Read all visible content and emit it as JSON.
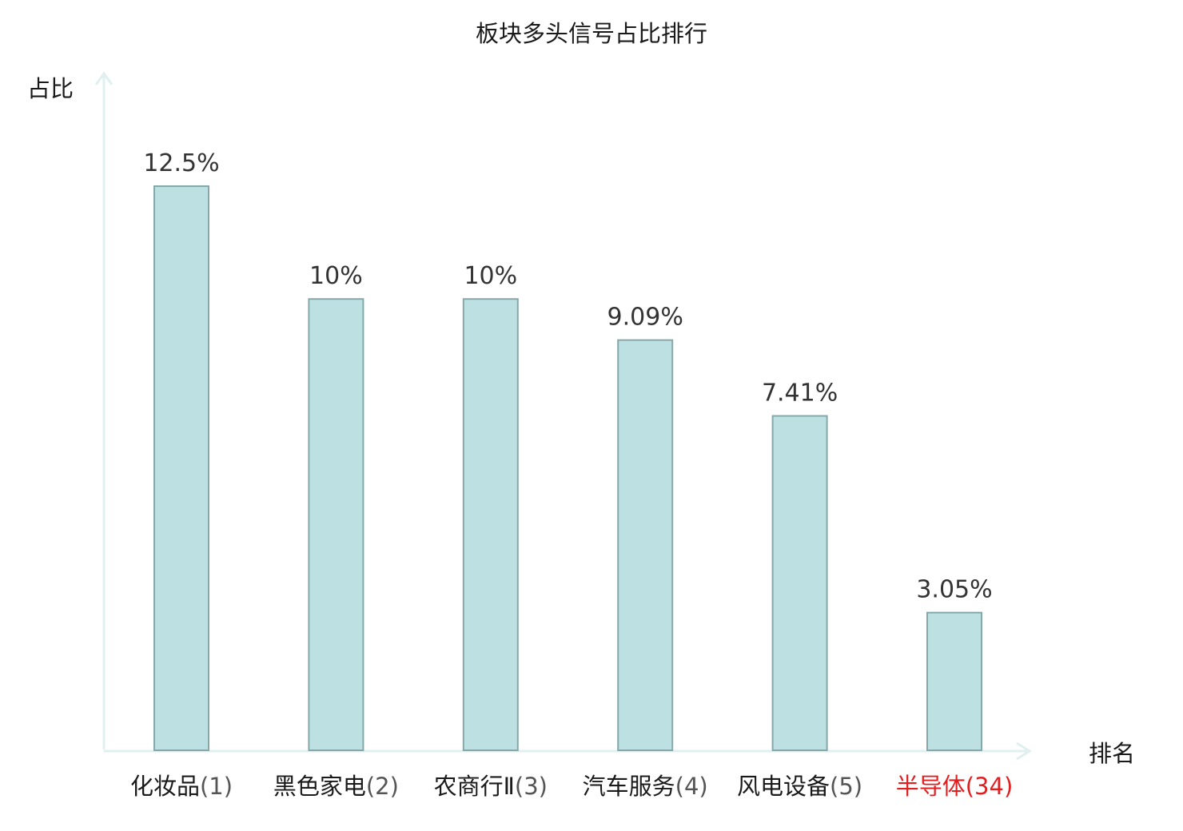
{
  "chart_data": {
    "type": "bar",
    "title": "板块多头信号占比排行",
    "xlabel": "排名",
    "ylabel": "占比",
    "categories": [
      "化妆品",
      "黑色家电",
      "农商行Ⅱ",
      "汽车服务",
      "风电设备",
      "半导体"
    ],
    "ranks": [
      "(1)",
      "(2)",
      "(3)",
      "(4)",
      "(5)",
      "(34)"
    ],
    "values": [
      12.5,
      10,
      10,
      9.09,
      7.41,
      3.05
    ],
    "value_labels": [
      "12.5%",
      "10%",
      "10%",
      "9.09%",
      "7.41%",
      "3.05%"
    ],
    "highlight_index": 5,
    "ylim": [
      0,
      15
    ],
    "grid": false,
    "colors": {
      "bar_fill": "#bde0e2",
      "bar_stroke": "#86a8aa",
      "axis": "#dff0ee",
      "label": "#1a1a1a",
      "rank": "#555555",
      "highlight": "#e02020"
    }
  }
}
